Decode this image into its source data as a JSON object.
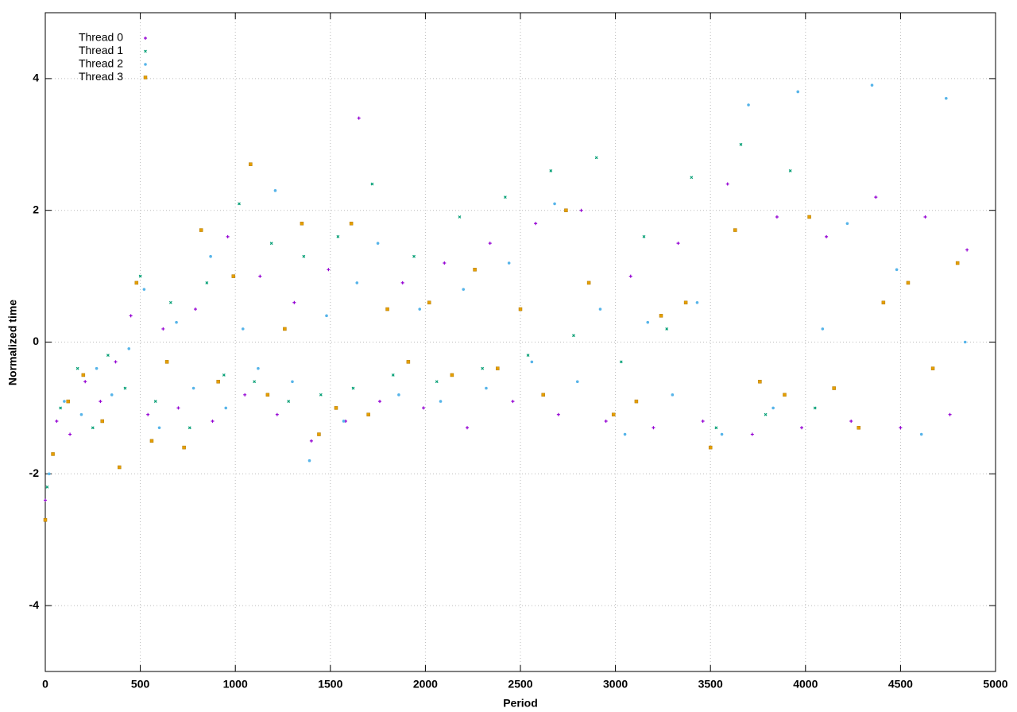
{
  "chart_data": {
    "type": "scatter",
    "x_label": "Period",
    "y_label": "Normalized time",
    "xlim": [
      0,
      5000
    ],
    "xticks": [
      0,
      500,
      1000,
      1500,
      2000,
      2500,
      3000,
      3500,
      4000,
      4500,
      5000
    ],
    "ylim": [
      -5,
      5
    ],
    "yticks": [
      -4,
      -2,
      0,
      2,
      4
    ],
    "grid": true,
    "legend": "top-left",
    "series": [
      {
        "name": "Thread 0",
        "color": "#9400d3",
        "marker": "plus",
        "x": [
          0,
          60,
          130,
          210,
          290,
          370,
          450,
          540,
          620,
          700,
          790,
          880,
          960,
          1050,
          1130,
          1220,
          1310,
          1400,
          1490,
          1580,
          1650,
          1760,
          1880,
          1990,
          2100,
          2220,
          2340,
          2460,
          2580,
          2700,
          2820,
          2950,
          3080,
          3200,
          3330,
          3460,
          3590,
          3720,
          3850,
          3980,
          4110,
          4240,
          4370,
          4500,
          4630,
          4760,
          4850
        ],
        "values": [
          -2.4,
          -1.2,
          -1.4,
          -0.6,
          -0.9,
          -0.3,
          0.4,
          -1.1,
          0.2,
          -1.0,
          0.5,
          -1.2,
          1.6,
          -0.8,
          1.0,
          -1.1,
          0.6,
          -1.5,
          1.1,
          -1.2,
          3.4,
          -0.9,
          0.9,
          -1.0,
          1.2,
          -1.3,
          1.5,
          -0.9,
          1.8,
          -1.1,
          2.0,
          -1.2,
          1.0,
          -1.3,
          1.5,
          -1.2,
          2.4,
          -1.4,
          1.9,
          -1.3,
          1.6,
          -1.2,
          2.2,
          -1.3,
          1.9,
          -1.1,
          1.4
        ]
      },
      {
        "name": "Thread 1",
        "color": "#009e73",
        "marker": "cross",
        "x": [
          10,
          80,
          170,
          250,
          330,
          420,
          500,
          580,
          660,
          760,
          850,
          940,
          1020,
          1100,
          1190,
          1280,
          1360,
          1450,
          1540,
          1620,
          1720,
          1830,
          1940,
          2060,
          2180,
          2300,
          2420,
          2540,
          2660,
          2780,
          2900,
          3030,
          3150,
          3270,
          3400,
          3530,
          3660,
          3790,
          3920,
          4050
        ],
        "values": [
          -2.2,
          -1.0,
          -0.4,
          -1.3,
          -0.2,
          -0.7,
          1.0,
          -0.9,
          0.6,
          -1.3,
          0.9,
          -0.5,
          2.1,
          -0.6,
          1.5,
          -0.9,
          1.3,
          -0.8,
          1.6,
          -0.7,
          2.4,
          -0.5,
          1.3,
          -0.6,
          1.9,
          -0.4,
          2.2,
          -0.2,
          2.6,
          0.1,
          2.8,
          -0.3,
          1.6,
          0.2,
          2.5,
          -1.3,
          3.0,
          -1.1,
          2.6,
          -1.0
        ]
      },
      {
        "name": "Thread 2",
        "color": "#56b4e9",
        "marker": "dot",
        "x": [
          20,
          100,
          190,
          270,
          350,
          440,
          520,
          600,
          690,
          780,
          870,
          950,
          1040,
          1120,
          1210,
          1300,
          1390,
          1480,
          1570,
          1640,
          1750,
          1860,
          1970,
          2080,
          2200,
          2320,
          2440,
          2560,
          2680,
          2800,
          2920,
          3050,
          3170,
          3300,
          3430,
          3560,
          3700,
          3830,
          3960,
          4090,
          4220,
          4350,
          4480,
          4610,
          4740,
          4840
        ],
        "values": [
          -2.0,
          -0.9,
          -1.1,
          -0.4,
          -0.8,
          -0.1,
          0.8,
          -1.3,
          0.3,
          -0.7,
          1.3,
          -1.0,
          0.2,
          -0.4,
          2.3,
          -0.6,
          -1.8,
          0.4,
          -1.2,
          0.9,
          1.5,
          -0.8,
          0.5,
          -0.9,
          0.8,
          -0.7,
          1.2,
          -0.3,
          2.1,
          -0.6,
          0.5,
          -1.4,
          0.3,
          -0.8,
          0.6,
          -1.4,
          3.6,
          -1.0,
          3.8,
          0.2,
          1.8,
          3.9,
          1.1,
          -1.4,
          3.7,
          0.0
        ]
      },
      {
        "name": "Thread 3",
        "color": "#e69f00",
        "marker": "square",
        "x": [
          0,
          40,
          120,
          200,
          300,
          390,
          480,
          560,
          640,
          730,
          820,
          910,
          990,
          1080,
          1170,
          1260,
          1350,
          1440,
          1530,
          1610,
          1700,
          1800,
          1910,
          2020,
          2140,
          2260,
          2380,
          2500,
          2620,
          2740,
          2860,
          2990,
          3110,
          3240,
          3370,
          3500,
          3630,
          3760,
          3890,
          4020,
          4150,
          4280,
          4410,
          4540,
          4670,
          4800
        ],
        "values": [
          -2.7,
          -1.7,
          -0.9,
          -0.5,
          -1.2,
          -1.9,
          0.9,
          -1.5,
          -0.3,
          -1.6,
          1.7,
          -0.6,
          1.0,
          2.7,
          -0.8,
          0.2,
          1.8,
          -1.4,
          -1.0,
          1.8,
          -1.1,
          0.5,
          -0.3,
          0.6,
          -0.5,
          1.1,
          -0.4,
          0.5,
          -0.8,
          2.0,
          0.9,
          -1.1,
          -0.9,
          0.4,
          0.6,
          -1.6,
          1.7,
          -0.6,
          -0.8,
          1.9,
          -0.7,
          -1.3,
          0.6,
          0.9,
          -0.4,
          1.2
        ]
      }
    ]
  }
}
